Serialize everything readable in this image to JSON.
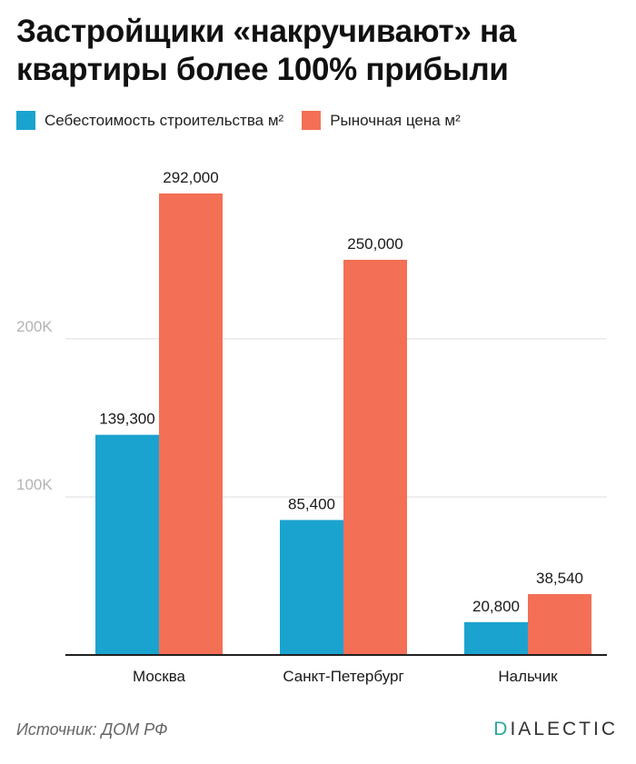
{
  "title": "Застройщики «накручивают» на квартиры более 100% прибыли",
  "source": "Источник: ДОМ РФ",
  "brand": {
    "first": "D",
    "rest": "IALECTIC",
    "accent": "#2aa7a0"
  },
  "colors": {
    "cost": "#1ba3cf",
    "market": "#f36f55",
    "grid": "#dddddd",
    "axis": "#222222",
    "tick": "#b3b3b3"
  },
  "chart_data": {
    "type": "bar",
    "title": "Застройщики «накручивают» на квартиры более 100% прибыли",
    "categories": [
      "Москва",
      "Санкт-Петербург",
      "Нальчик"
    ],
    "series": [
      {
        "name": "Себестоимость строительства м²",
        "values": [
          139300,
          85400,
          20800
        ],
        "labels": [
          "139,300",
          "85,400",
          "20,800"
        ],
        "color": "#1ba3cf"
      },
      {
        "name": "Рыночная цена м²",
        "values": [
          292000,
          250000,
          38540
        ],
        "labels": [
          "292,000",
          "250,000",
          "38,540"
        ],
        "color": "#f36f55"
      }
    ],
    "y_ticks": [
      100000,
      200000
    ],
    "y_tick_labels": [
      "100K",
      "200K"
    ],
    "ylim": [
      0,
      300000
    ],
    "xlabel": "",
    "ylabel": "",
    "grid": true,
    "legend_position": "top-left"
  }
}
